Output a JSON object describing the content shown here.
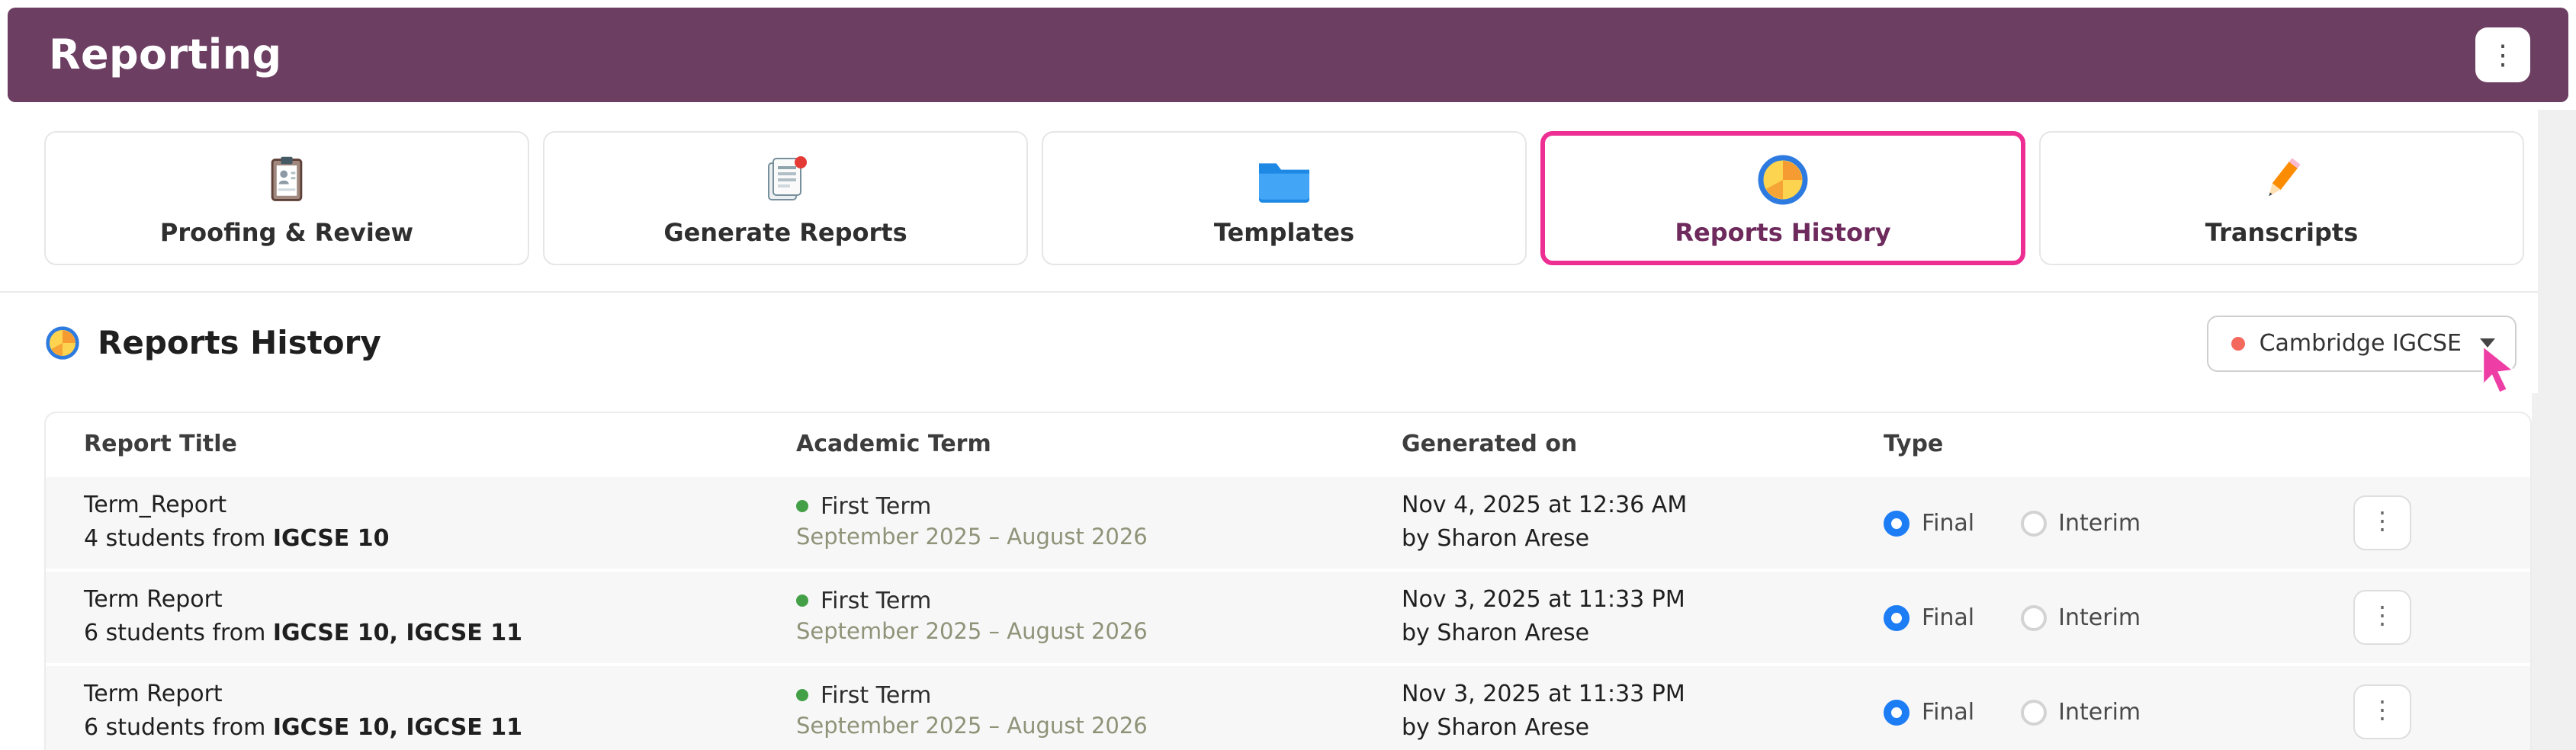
{
  "header": {
    "title": "Reporting"
  },
  "tabs": [
    {
      "label": "Proofing & Review",
      "icon": "proofing-review-icon",
      "active": false
    },
    {
      "label": "Generate Reports",
      "icon": "generate-reports-icon",
      "active": false
    },
    {
      "label": "Templates",
      "icon": "templates-icon",
      "active": false
    },
    {
      "label": "Reports History",
      "icon": "reports-history-icon",
      "active": true
    },
    {
      "label": "Transcripts",
      "icon": "transcripts-icon",
      "active": false
    }
  ],
  "section": {
    "title": "Reports History",
    "icon": "reports-history-icon",
    "filter": {
      "label": "Cambridge IGCSE"
    }
  },
  "table": {
    "columns": [
      "Report Title",
      "Academic Term",
      "Generated on",
      "Type"
    ],
    "rows": [
      {
        "title": "Term_Report",
        "subtitle_prefix": "4 students from ",
        "subtitle_bold": "IGCSE 10",
        "term": "First Term",
        "term_range": "September 2025 – August 2026",
        "generated": "Nov 4, 2025 at 12:36 AM",
        "generated_by": "by Sharon Arese",
        "type": "Final",
        "type_options": [
          "Final",
          "Interim"
        ]
      },
      {
        "title": "Term Report",
        "subtitle_prefix": "6 students from ",
        "subtitle_bold": "IGCSE 10, IGCSE 11",
        "term": "First Term",
        "term_range": "September 2025 – August 2026",
        "generated": "Nov 3, 2025 at 11:33 PM",
        "generated_by": "by Sharon Arese",
        "type": "Final",
        "type_options": [
          "Final",
          "Interim"
        ]
      },
      {
        "title": "Term Report",
        "subtitle_prefix": "6 students from ",
        "subtitle_bold": "IGCSE 10, IGCSE 11",
        "term": "First Term",
        "term_range": "September 2025 – August 2026",
        "generated": "Nov 3, 2025 at 11:33 PM",
        "generated_by": "by Sharon Arese",
        "type": "Final",
        "type_options": [
          "Final",
          "Interim"
        ]
      }
    ]
  },
  "colors": {
    "header_bg": "#6c3e62",
    "active_tab_border": "#ed2e92",
    "radio_selected": "#1d7df5",
    "term_dot": "#43a047",
    "filter_dot": "#f4695e"
  }
}
